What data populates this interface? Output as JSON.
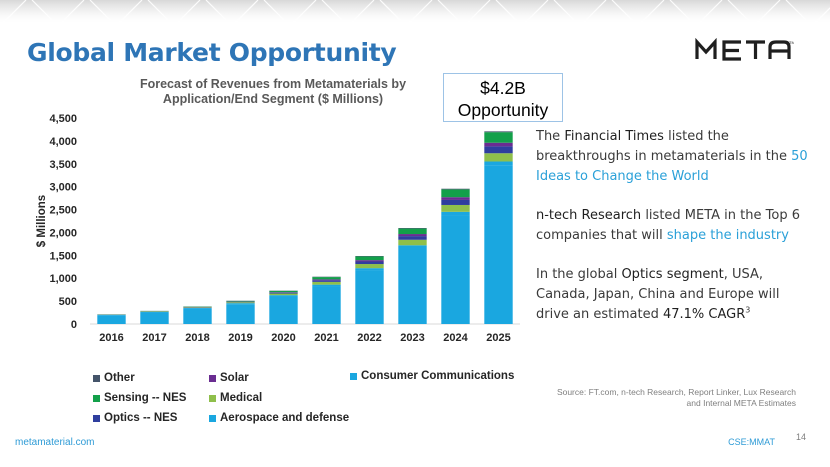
{
  "title": "Global Market Opportunity",
  "logo": {
    "text": "META"
  },
  "callout": {
    "line1": "$4.2B",
    "line2": "Opportunity"
  },
  "body": {
    "p1_pre": "The ",
    "p1_bold": "Financial Times",
    "p1_mid": " listed the breakthroughs in metamaterials in the ",
    "p1_link": "50 Ideas to Change the World",
    "p2_bold": "n-tech Research",
    "p2_mid": " listed  META in the Top 6 companies that will ",
    "p2_link": "shape the industry",
    "p3_pre": "In the global ",
    "p3_bold1": "Optics segment",
    "p3_mid": ", USA, Canada, Japan, China and Europe will drive an estimated ",
    "p3_bold2": "47.1% CAGR",
    "p3_sup": "3"
  },
  "source": {
    "line1": "Source: FT.com, n-tech Research, Report Linker, Lux Research",
    "line2": "and Internal META Estimates"
  },
  "footer": {
    "left": "metamaterial.com",
    "right": "CSE:MMAT",
    "page": "14"
  },
  "chart_data": {
    "type": "bar",
    "stacked": true,
    "title_line1": "Forecast of Revenues from Metamaterials by",
    "title_line2": "Application/End Segment ($ Millions)",
    "ylabel": "$ Millions",
    "xlabel": "",
    "ylim": [
      0,
      4500
    ],
    "yticks": [
      0,
      500,
      1000,
      1500,
      2000,
      2500,
      3000,
      3500,
      4000,
      4500
    ],
    "ytick_labels": [
      "0",
      "500",
      "1,000",
      "1,500",
      "2,000",
      "2,500",
      "3,000",
      "3,500",
      "4,000",
      "4,500"
    ],
    "categories": [
      "2016",
      "2017",
      "2018",
      "2019",
      "2020",
      "2021",
      "2022",
      "2023",
      "2024",
      "2025"
    ],
    "series": [
      {
        "name": "Consumer Communications",
        "color": "#1aa7e0",
        "values": [
          190,
          250,
          330,
          430,
          600,
          820,
          1170,
          1660,
          2380,
          3470
        ]
      },
      {
        "name": "Aerospace and defense",
        "color": "#1aa7e0",
        "values": [
          10,
          15,
          20,
          25,
          30,
          40,
          50,
          60,
          70,
          80
        ]
      },
      {
        "name": "Medical",
        "color": "#8fbf4b",
        "values": [
          5,
          8,
          12,
          20,
          35,
          60,
          90,
          120,
          150,
          180
        ]
      },
      {
        "name": "Optics -- NES",
        "color": "#2f3e9e",
        "values": [
          2,
          4,
          6,
          10,
          20,
          35,
          55,
          80,
          110,
          150
        ]
      },
      {
        "name": "Solar",
        "color": "#6a2d91",
        "values": [
          2,
          3,
          4,
          6,
          10,
          20,
          30,
          45,
          60,
          80
        ]
      },
      {
        "name": "Sensing -- NES",
        "color": "#13a04a",
        "values": [
          3,
          5,
          8,
          14,
          28,
          50,
          80,
          120,
          170,
          230
        ]
      },
      {
        "name": "Other",
        "color": "#44546a",
        "values": [
          1,
          2,
          3,
          4,
          6,
          8,
          10,
          12,
          15,
          18
        ]
      }
    ],
    "legend": {
      "col1": [
        "Other",
        "Sensing -- NES",
        "Optics -- NES"
      ],
      "col2": [
        "Solar",
        "Medical",
        "Aerospace and defense"
      ],
      "col3": [
        "Consumer Communications"
      ]
    }
  }
}
